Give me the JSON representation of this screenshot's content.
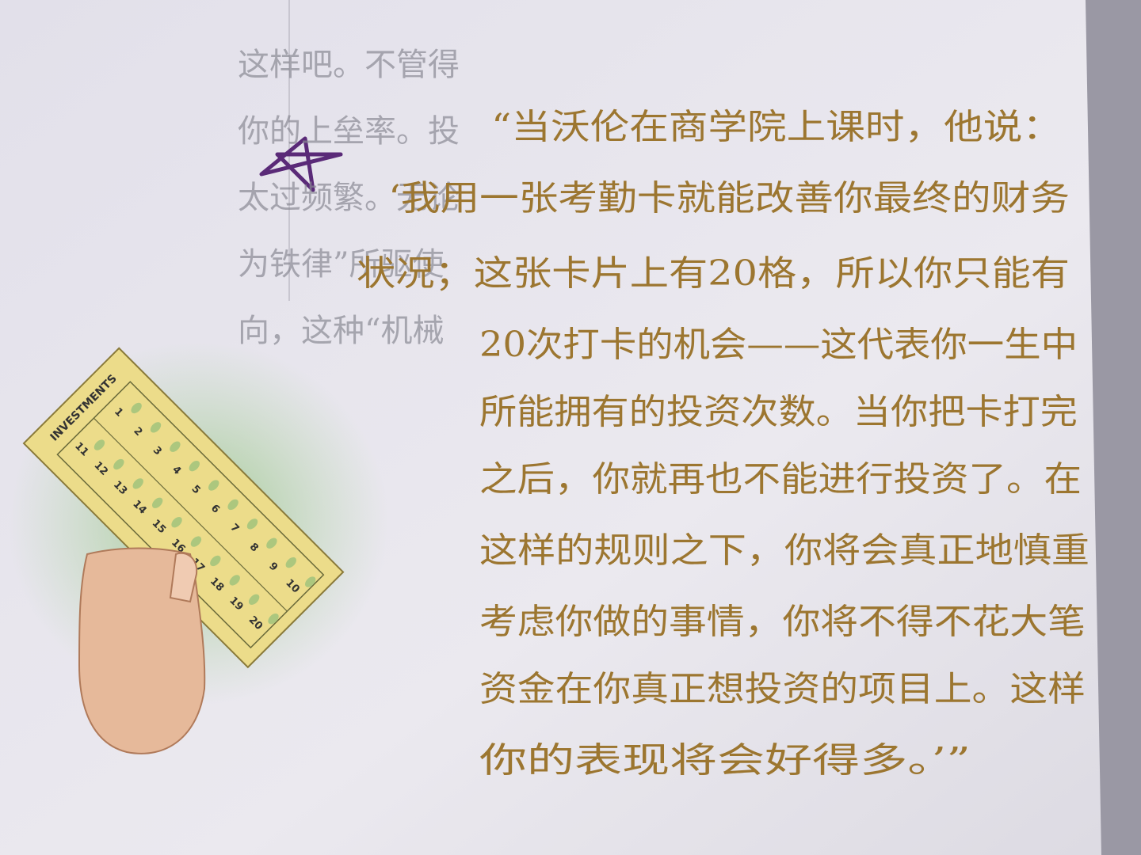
{
  "left_column": {
    "lines": [
      "这样吧。不管得",
      "你的上垒率。投",
      "太过频繁。无论",
      "为铁律”所驱使",
      "向，这种“机械"
    ]
  },
  "quote": {
    "lines": [
      "“当沃伦在商学院上课时，他说：",
      "‘我用一张考勤卡就能改善你最终的财务",
      "状况；这张卡片上有20格，所以你只能有",
      "20次打卡的机会——这代表你一生中",
      "所能拥有的投资次数。当你把卡打完",
      "之后，你就再也不能进行投资了。在",
      "这样的规则之下，你将会真正地慎重",
      "考虑你做的事情，你将不得不花大笔",
      "资金在你真正想投资的项目上。这样",
      "你的表现将会好得多。’”"
    ]
  },
  "card": {
    "title": "INVESTMENTS",
    "numbers": [
      1,
      2,
      3,
      4,
      5,
      6,
      7,
      8,
      9,
      10,
      11,
      12,
      13,
      14,
      15,
      16,
      17,
      18,
      19,
      20
    ]
  }
}
